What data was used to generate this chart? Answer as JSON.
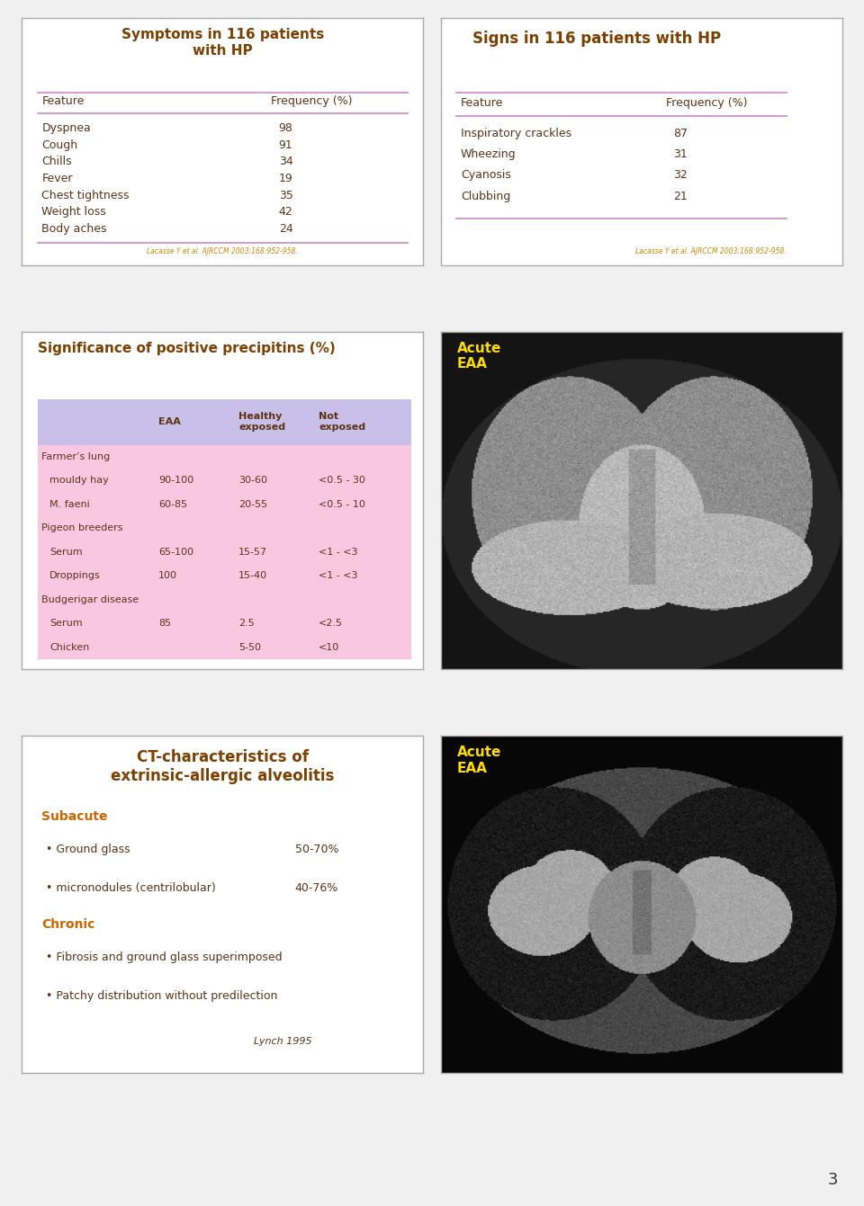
{
  "bg_color": "#f0f0f0",
  "panel_bg": "#ffffff",
  "title_color": "#7B3F00",
  "text_color": "#5C3317",
  "accent_color": "#CC8800",
  "line_color": "#CC88CC",
  "table_header_bg": "#C8C0E8",
  "table_row_bg": "#F8C8E0",
  "panel1_title": "Symptoms in 116 patients\nwith HP",
  "panel1_col1": "Feature",
  "panel1_col2": "Frequency (%)",
  "panel1_rows": [
    [
      "Dyspnea",
      "98"
    ],
    [
      "Cough",
      "91"
    ],
    [
      "Chills",
      "34"
    ],
    [
      "Fever",
      "19"
    ],
    [
      "Chest tightness",
      "35"
    ],
    [
      "Weight loss",
      "42"
    ],
    [
      "Body aches",
      "24"
    ]
  ],
  "panel1_ref": "Lacasse Y et al. AJRCCM 2003;168:952-958.",
  "panel2_title": "Signs in 116 patients with HP",
  "panel2_col1": "Feature",
  "panel2_col2": "Frequency (%)",
  "panel2_rows": [
    [
      "Inspiratory crackles",
      "87"
    ],
    [
      "Wheezing",
      "31"
    ],
    [
      "Cyanosis",
      "32"
    ],
    [
      "Clubbing",
      "21"
    ]
  ],
  "panel2_ref": "Lacasse Y et al. AJRCCM 2003;168:952-958.",
  "panel3_title": "Significance of positive precipitins (%)",
  "panel3_header": [
    "",
    "EAA",
    "Healthy\nexposed",
    "Not\nexposed"
  ],
  "panel3_rows": [
    [
      "Farmer’s lung",
      "",
      "",
      ""
    ],
    [
      "   mouldy hay",
      "90-100",
      "30-60",
      "<0.5 - 30"
    ],
    [
      "   M. faeni",
      "60-85",
      "20-55",
      "<0.5 - 10"
    ],
    [
      "Pigeon breeders",
      "",
      "",
      ""
    ],
    [
      "   Serum",
      "65-100",
      "15-57",
      "<1 - <3"
    ],
    [
      "   Droppings",
      "100",
      "15-40",
      "<1 - <3"
    ],
    [
      "Budgerigar disease",
      "",
      "",
      ""
    ],
    [
      "   Serum",
      "85",
      "2.5",
      "<2.5"
    ],
    [
      "Chicken",
      "",
      "5-50",
      "<10"
    ]
  ],
  "panel4_title": "Acute\nEAA",
  "panel5_title": "CT-characteristics of\nextrinsic-allergic alveolitis",
  "panel5_subacute": "Subacute",
  "panel5_items1": [
    [
      "Ground glass",
      "50-70%"
    ],
    [
      "micronodules (centrilobular)",
      "40-76%"
    ]
  ],
  "panel5_chronic": "Chronic",
  "panel5_items2": [
    "Fibrosis and ground glass superimposed",
    "Patchy distribution without predilection"
  ],
  "panel5_ref": "Lynch 1995",
  "panel6_title": "Acute\nEAA",
  "page_number": "3"
}
